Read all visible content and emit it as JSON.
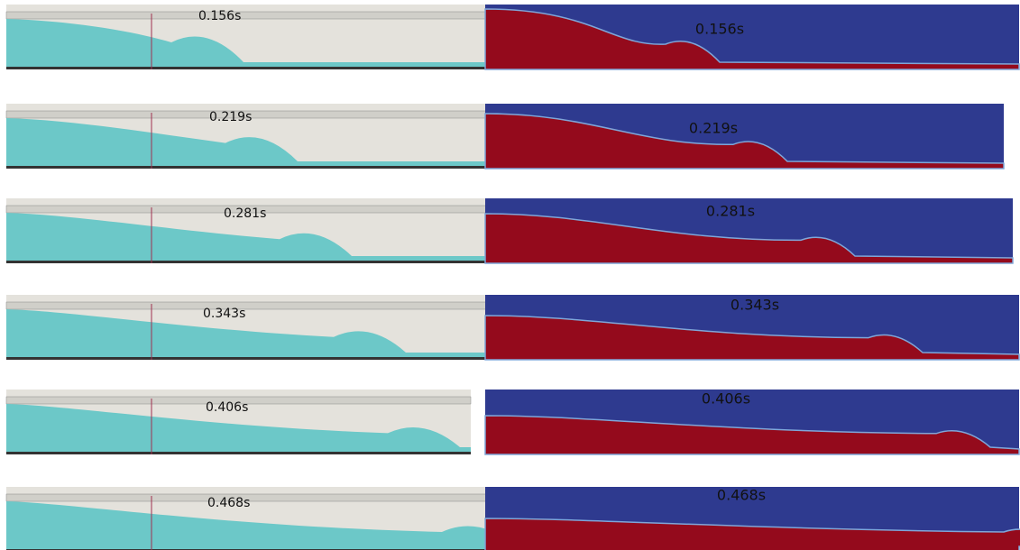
{
  "rows": [
    {
      "experiment_label": "0.156s",
      "simulation_label": "0.156s"
    },
    {
      "experiment_label": "0.219s",
      "simulation_label": "0.219s"
    },
    {
      "experiment_label": "0.281s",
      "simulation_label": "0.281s"
    },
    {
      "experiment_label": "0.343s",
      "simulation_label": "0.343s"
    },
    {
      "experiment_label": "0.406s",
      "simulation_label": "0.406s"
    },
    {
      "experiment_label": "0.468s",
      "simulation_label": "0.468s"
    }
  ]
}
